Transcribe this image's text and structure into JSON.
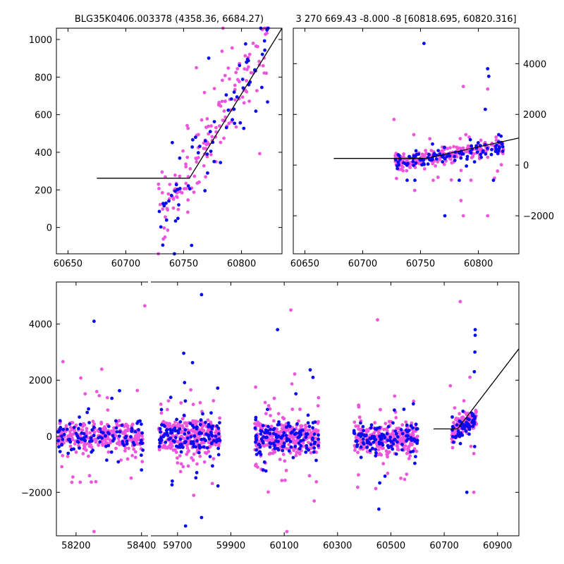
{
  "chart_data": [
    {
      "type": "scatter",
      "title": "BLG35K0406.003378 (4358.36, 6684.27)",
      "xlim": [
        60640,
        60835
      ],
      "ylim": [
        -140,
        1060
      ],
      "xticks": [
        60650,
        60700,
        60750,
        60800
      ],
      "yticks": [
        0,
        200,
        400,
        600,
        800,
        1000
      ],
      "ytick_side": "left",
      "colors": {
        "series_a": "#0a0aee",
        "series_b": "#ee55dd",
        "model": "#000000"
      },
      "model_line": {
        "x": [
          60675,
          60755,
          60835
        ],
        "y": [
          262,
          262,
          1060
        ]
      },
      "point_clouds": [
        {
          "x_range": [
            60728,
            60825
          ],
          "y_range": [
            -140,
            1060
          ],
          "trend": {
            "x0": 60755,
            "y0": 300,
            "slope": 10.0
          },
          "spread": 190,
          "n_a": 70,
          "n_b": 160
        }
      ]
    },
    {
      "type": "scatter",
      "title": "3 270 669.43 -8.000 -8 [60818.695, 60820.316]",
      "xlim": [
        60640,
        60835
      ],
      "ylim": [
        -3500,
        5400
      ],
      "xticks": [
        60650,
        60700,
        60750,
        60800
      ],
      "yticks": [
        -2000,
        0,
        2000,
        4000
      ],
      "ytick_side": "right",
      "colors": {
        "series_a": "#0a0aee",
        "series_b": "#ee55dd",
        "model": "#000000"
      },
      "model_line": {
        "x": [
          60675,
          60755,
          60835
        ],
        "y": [
          262,
          262,
          1070
        ]
      },
      "point_clouds": [
        {
          "x_range": [
            60728,
            60822
          ],
          "y_range": [
            -600,
            1200
          ],
          "trend": {
            "x0": 60728,
            "y0": 100,
            "slope": 6.5
          },
          "spread": 260,
          "n_a": 110,
          "n_b": 230
        }
      ],
      "outliers": [
        {
          "x": 60753,
          "y": 4800,
          "s": "a"
        },
        {
          "x": 60808,
          "y": 3800,
          "s": "a"
        },
        {
          "x": 60809,
          "y": 3500,
          "s": "a"
        },
        {
          "x": 60806,
          "y": 2200,
          "s": "a"
        },
        {
          "x": 60808,
          "y": 3000,
          "s": "b"
        },
        {
          "x": 60787,
          "y": 3100,
          "s": "b"
        },
        {
          "x": 60727,
          "y": 1800,
          "s": "b"
        },
        {
          "x": 60745,
          "y": -1000,
          "s": "b"
        },
        {
          "x": 60771,
          "y": -2000,
          "s": "a"
        },
        {
          "x": 60787,
          "y": -2000,
          "s": "b"
        },
        {
          "x": 60785,
          "y": -1400,
          "s": "b"
        },
        {
          "x": 60808,
          "y": -2000,
          "s": "b"
        },
        {
          "x": 60813,
          "y": -600,
          "s": "a"
        },
        {
          "x": 60793,
          "y": 1000,
          "s": "a"
        }
      ]
    },
    {
      "type": "scatter",
      "title": "",
      "ylim": [
        -3550,
        5500
      ],
      "yticks": [
        -2000,
        0,
        2000,
        4000
      ],
      "ytick_side": "left",
      "colors": {
        "series_a": "#0a0aee",
        "series_b": "#ee55dd",
        "model": "#000000"
      },
      "segments": [
        {
          "xlim": [
            58140,
            58420
          ],
          "xticks": [
            58200,
            58400
          ]
        },
        {
          "xlim": [
            59600,
            60980
          ],
          "xticks": [
            59700,
            59900,
            60100,
            60300,
            60500,
            60700,
            60900
          ]
        }
      ],
      "model_line": {
        "x": [
          60660,
          60750,
          60980
        ],
        "y": [
          262,
          262,
          3120
        ]
      },
      "point_clouds": [
        {
          "x_range": [
            58145,
            58405
          ],
          "y_range": [
            -3400,
            4600
          ],
          "trend": {
            "x0": 58145,
            "y0": 0,
            "slope": 0
          },
          "spread": 420,
          "n_a": 110,
          "n_b": 300
        },
        {
          "x_range": [
            59630,
            59860
          ],
          "y_range": [
            -3300,
            5050
          ],
          "trend": {
            "x0": 59630,
            "y0": 0,
            "slope": 0
          },
          "spread": 480,
          "n_a": 130,
          "n_b": 300
        },
        {
          "x_range": [
            59990,
            60230
          ],
          "y_range": [
            -3400,
            4500
          ],
          "trend": {
            "x0": 59990,
            "y0": -50,
            "slope": 0
          },
          "spread": 480,
          "n_a": 130,
          "n_b": 300
        },
        {
          "x_range": [
            60360,
            60600
          ],
          "y_range": [
            -2700,
            4200
          ],
          "trend": {
            "x0": 60360,
            "y0": -50,
            "slope": 0
          },
          "spread": 450,
          "n_a": 120,
          "n_b": 280
        },
        {
          "x_range": [
            60728,
            60822
          ],
          "y_range": [
            -2100,
            4800
          ],
          "trend": {
            "x0": 60728,
            "y0": 100,
            "slope": 6.5
          },
          "spread": 260,
          "n_a": 60,
          "n_b": 140
        }
      ],
      "outliers": [
        {
          "x": 60760,
          "y": 4800,
          "s": "b"
        },
        {
          "x": 60816,
          "y": 3800,
          "s": "a"
        },
        {
          "x": 60816,
          "y": 3600,
          "s": "a"
        },
        {
          "x": 60815,
          "y": 3000,
          "s": "a"
        },
        {
          "x": 60813,
          "y": 2300,
          "s": "a"
        },
        {
          "x": 60723,
          "y": 1800,
          "s": "b"
        },
        {
          "x": 60785,
          "y": -2000,
          "s": "a"
        },
        {
          "x": 60811,
          "y": -2000,
          "s": "b"
        },
        {
          "x": 59790,
          "y": 5050,
          "s": "a"
        },
        {
          "x": 58410,
          "y": 4650,
          "s": "b"
        },
        {
          "x": 58255,
          "y": 4100,
          "s": "a"
        },
        {
          "x": 60125,
          "y": 4500,
          "s": "b"
        },
        {
          "x": 60075,
          "y": 3800,
          "s": "a"
        },
        {
          "x": 60450,
          "y": 4150,
          "s": "b"
        },
        {
          "x": 59790,
          "y": -2900,
          "s": "a"
        },
        {
          "x": 59730,
          "y": -3200,
          "s": "a"
        },
        {
          "x": 60110,
          "y": -3400,
          "s": "b"
        },
        {
          "x": 58255,
          "y": -3400,
          "s": "b"
        },
        {
          "x": 60455,
          "y": -2600,
          "s": "a"
        }
      ]
    }
  ]
}
